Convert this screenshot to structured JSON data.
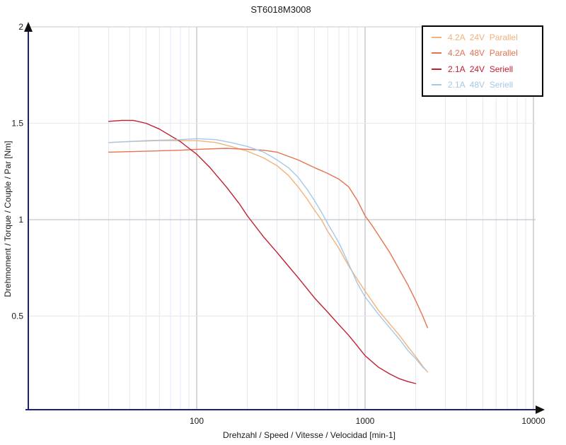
{
  "title": "ST6018M3008",
  "axes": {
    "x_label": "Drehzahl / Speed / Vitesse / Velocidad [min-1]",
    "y_label": "Drehmoment / Torque / Couple / Par [Nm]",
    "x_scale": "log",
    "x_ticks": [
      {
        "value": 100,
        "label": "100"
      },
      {
        "value": 1000,
        "label": "1000"
      },
      {
        "value": 10000,
        "label": "10000"
      }
    ],
    "y_ticks": [
      {
        "value": 2,
        "label": "2",
        "grid_color": "#c8c8d1"
      },
      {
        "value": 1.5,
        "label": "1.5",
        "grid_color": "#e7e7ec"
      },
      {
        "value": 1,
        "label": "1",
        "grid_color": "#b4b7c1"
      },
      {
        "value": 0.5,
        "label": "0.5",
        "grid_color": "#e7e7ec"
      }
    ]
  },
  "colors": {
    "axis": "#20207c",
    "arrow": "#111111",
    "grid_minor": "#e3e9f2",
    "grid_major": "#adadb7",
    "tick_text": "#1a1a1a",
    "legend_border": "#000000",
    "background": "#ffffff"
  },
  "chart_data": {
    "type": "line",
    "title": "ST6018M3008",
    "xlabel": "Drehzahl / Speed / Vitesse / Velocidad [min-1]",
    "ylabel": "Drehmoment / Torque / Couple / Par [Nm]",
    "x_scale": "log",
    "xlim": [
      10,
      10000
    ],
    "ylim": [
      0,
      2
    ],
    "grid": true,
    "legend_position": "top-right",
    "series": [
      {
        "name": "4.2A  24V  Parallel",
        "color": "#f2b279",
        "points": [
          [
            30,
            1.4
          ],
          [
            40,
            1.405
          ],
          [
            60,
            1.41
          ],
          [
            80,
            1.41
          ],
          [
            100,
            1.41
          ],
          [
            130,
            1.4
          ],
          [
            160,
            1.38
          ],
          [
            200,
            1.355
          ],
          [
            250,
            1.32
          ],
          [
            300,
            1.28
          ],
          [
            350,
            1.23
          ],
          [
            400,
            1.17
          ],
          [
            450,
            1.11
          ],
          [
            500,
            1.05
          ],
          [
            550,
            1.0
          ],
          [
            600,
            0.94
          ],
          [
            700,
            0.85
          ],
          [
            800,
            0.76
          ],
          [
            900,
            0.69
          ],
          [
            1000,
            0.63
          ],
          [
            1200,
            0.53
          ],
          [
            1400,
            0.46
          ],
          [
            1600,
            0.4
          ],
          [
            1800,
            0.34
          ],
          [
            2000,
            0.29
          ],
          [
            2200,
            0.24
          ],
          [
            2350,
            0.21
          ]
        ]
      },
      {
        "name": "4.2A  48V  Parallel",
        "color": "#e57350",
        "points": [
          [
            30,
            1.35
          ],
          [
            50,
            1.355
          ],
          [
            80,
            1.36
          ],
          [
            100,
            1.365
          ],
          [
            150,
            1.37
          ],
          [
            200,
            1.365
          ],
          [
            250,
            1.36
          ],
          [
            300,
            1.35
          ],
          [
            400,
            1.31
          ],
          [
            500,
            1.27
          ],
          [
            600,
            1.24
          ],
          [
            700,
            1.21
          ],
          [
            800,
            1.17
          ],
          [
            900,
            1.1
          ],
          [
            1000,
            1.02
          ],
          [
            1100,
            0.97
          ],
          [
            1200,
            0.92
          ],
          [
            1400,
            0.83
          ],
          [
            1600,
            0.74
          ],
          [
            1800,
            0.66
          ],
          [
            2000,
            0.58
          ],
          [
            2200,
            0.5
          ],
          [
            2350,
            0.44
          ]
        ]
      },
      {
        "name": "2.1A  24V  Seriell",
        "color": "#c02030",
        "points": [
          [
            30,
            1.51
          ],
          [
            36,
            1.515
          ],
          [
            42,
            1.515
          ],
          [
            50,
            1.5
          ],
          [
            60,
            1.47
          ],
          [
            70,
            1.435
          ],
          [
            80,
            1.405
          ],
          [
            90,
            1.37
          ],
          [
            100,
            1.34
          ],
          [
            120,
            1.27
          ],
          [
            150,
            1.17
          ],
          [
            180,
            1.08
          ],
          [
            200,
            1.02
          ],
          [
            250,
            0.91
          ],
          [
            300,
            0.83
          ],
          [
            350,
            0.76
          ],
          [
            400,
            0.7
          ],
          [
            500,
            0.595
          ],
          [
            600,
            0.52
          ],
          [
            700,
            0.455
          ],
          [
            800,
            0.4
          ],
          [
            900,
            0.345
          ],
          [
            1000,
            0.295
          ],
          [
            1200,
            0.235
          ],
          [
            1400,
            0.2
          ],
          [
            1600,
            0.175
          ],
          [
            1800,
            0.16
          ],
          [
            2000,
            0.15
          ]
        ]
      },
      {
        "name": "2.1A  48V  Seriell",
        "color": "#a5c8e8",
        "points": [
          [
            30,
            1.4
          ],
          [
            50,
            1.41
          ],
          [
            80,
            1.415
          ],
          [
            100,
            1.42
          ],
          [
            130,
            1.415
          ],
          [
            160,
            1.4
          ],
          [
            200,
            1.38
          ],
          [
            250,
            1.35
          ],
          [
            300,
            1.31
          ],
          [
            350,
            1.27
          ],
          [
            400,
            1.22
          ],
          [
            450,
            1.16
          ],
          [
            500,
            1.1
          ],
          [
            550,
            1.04
          ],
          [
            600,
            0.98
          ],
          [
            700,
            0.88
          ],
          [
            800,
            0.77
          ],
          [
            900,
            0.67
          ],
          [
            1000,
            0.6
          ],
          [
            1200,
            0.51
          ],
          [
            1400,
            0.44
          ],
          [
            1600,
            0.38
          ],
          [
            1800,
            0.32
          ],
          [
            2000,
            0.28
          ],
          [
            2200,
            0.235
          ],
          [
            2300,
            0.22
          ]
        ]
      }
    ]
  }
}
